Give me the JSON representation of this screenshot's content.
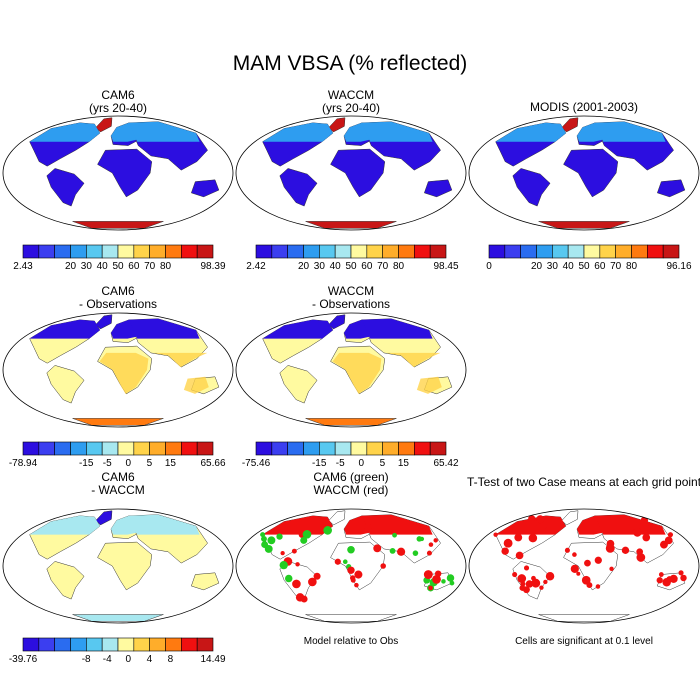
{
  "title": "MAM VBSA (% reflected)",
  "palettes": {
    "rainbow": [
      "#2c0ee0",
      "#3b3ef0",
      "#2a6cf0",
      "#2e9df0",
      "#58c8f0",
      "#a8e8f0",
      "#fffaa0",
      "#ffd34a",
      "#ffad2a",
      "#ff7a10",
      "#f01010",
      "#c81616"
    ],
    "diff": [
      "#2c0ee0",
      "#3b3ef0",
      "#2a6cf0",
      "#2e9df0",
      "#58c8f0",
      "#a8e8f0",
      "#fffaa0",
      "#ffd34a",
      "#ffad2a",
      "#ff7a10",
      "#f01010",
      "#c81616"
    ]
  },
  "panels": [
    {
      "id": "cam6",
      "title": "CAM6\n(yrs 20-40)",
      "scheme": "bright",
      "cbar": [
        "2.43",
        "20",
        "30",
        "40",
        "50",
        "60",
        "70",
        "80",
        "98.39"
      ]
    },
    {
      "id": "waccm",
      "title": "WACCM\n(yrs 20-40)",
      "scheme": "bright",
      "cbar": [
        "2.42",
        "20",
        "30",
        "40",
        "50",
        "60",
        "70",
        "80",
        "98.45"
      ]
    },
    {
      "id": "modis",
      "title": "MODIS (2001-2003)",
      "scheme": "bright",
      "cbar": [
        "0",
        "20",
        "30",
        "40",
        "50",
        "60",
        "70",
        "80",
        "96.16"
      ]
    },
    {
      "id": "cam6-obs",
      "title": "CAM6\n- Observations",
      "scheme": "diff",
      "cbar": [
        "-78.94",
        "-15",
        "-5",
        "0",
        "5",
        "15",
        "65.66"
      ]
    },
    {
      "id": "waccm-obs",
      "title": "WACCM\n- Observations",
      "scheme": "diff",
      "cbar": [
        "-75.46",
        "-15",
        "-5",
        "0",
        "5",
        "15",
        "65.42"
      ]
    },
    {
      "id": "cam6-waccm",
      "title": "CAM6\n- WACCM",
      "scheme": "small",
      "cbar": [
        "-39.76",
        "-8",
        "-4",
        "0",
        "4",
        "8",
        "14.49"
      ]
    },
    {
      "id": "model-rel",
      "title": "CAM6 (green)\nWACCM (red)",
      "scheme": "greenred",
      "note": "Model relative to Obs"
    },
    {
      "id": "ttest",
      "title": "T-Test of two Case means at each grid point",
      "scheme": "redonly",
      "note": "Cells are significant at 0.1 level"
    }
  ]
}
